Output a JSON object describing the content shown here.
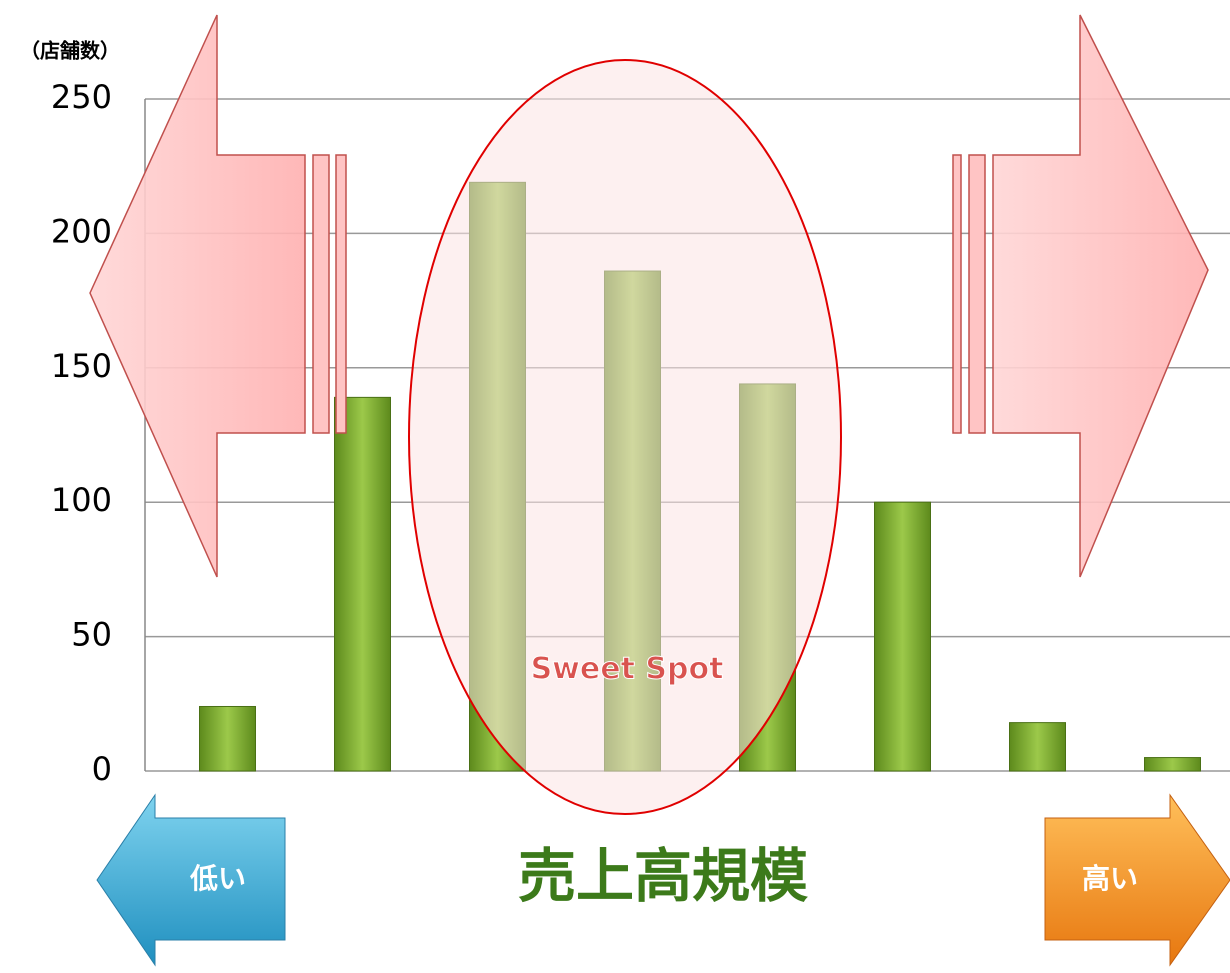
{
  "chart_data": {
    "type": "bar",
    "y_label": "（店舗数）",
    "x_label": "売上高規模",
    "annotations": {
      "center": "Sweet Spot",
      "left": "低い",
      "right": "高い"
    },
    "categories": [
      null,
      null,
      null,
      null,
      null,
      null,
      null,
      null
    ],
    "values": [
      24,
      139,
      219,
      186,
      144,
      100,
      18,
      5
    ],
    "color": "#7aa82a",
    "ylim": [
      0,
      250
    ],
    "yticks": [
      0,
      50,
      100,
      150,
      200,
      250
    ],
    "grid": true
  }
}
